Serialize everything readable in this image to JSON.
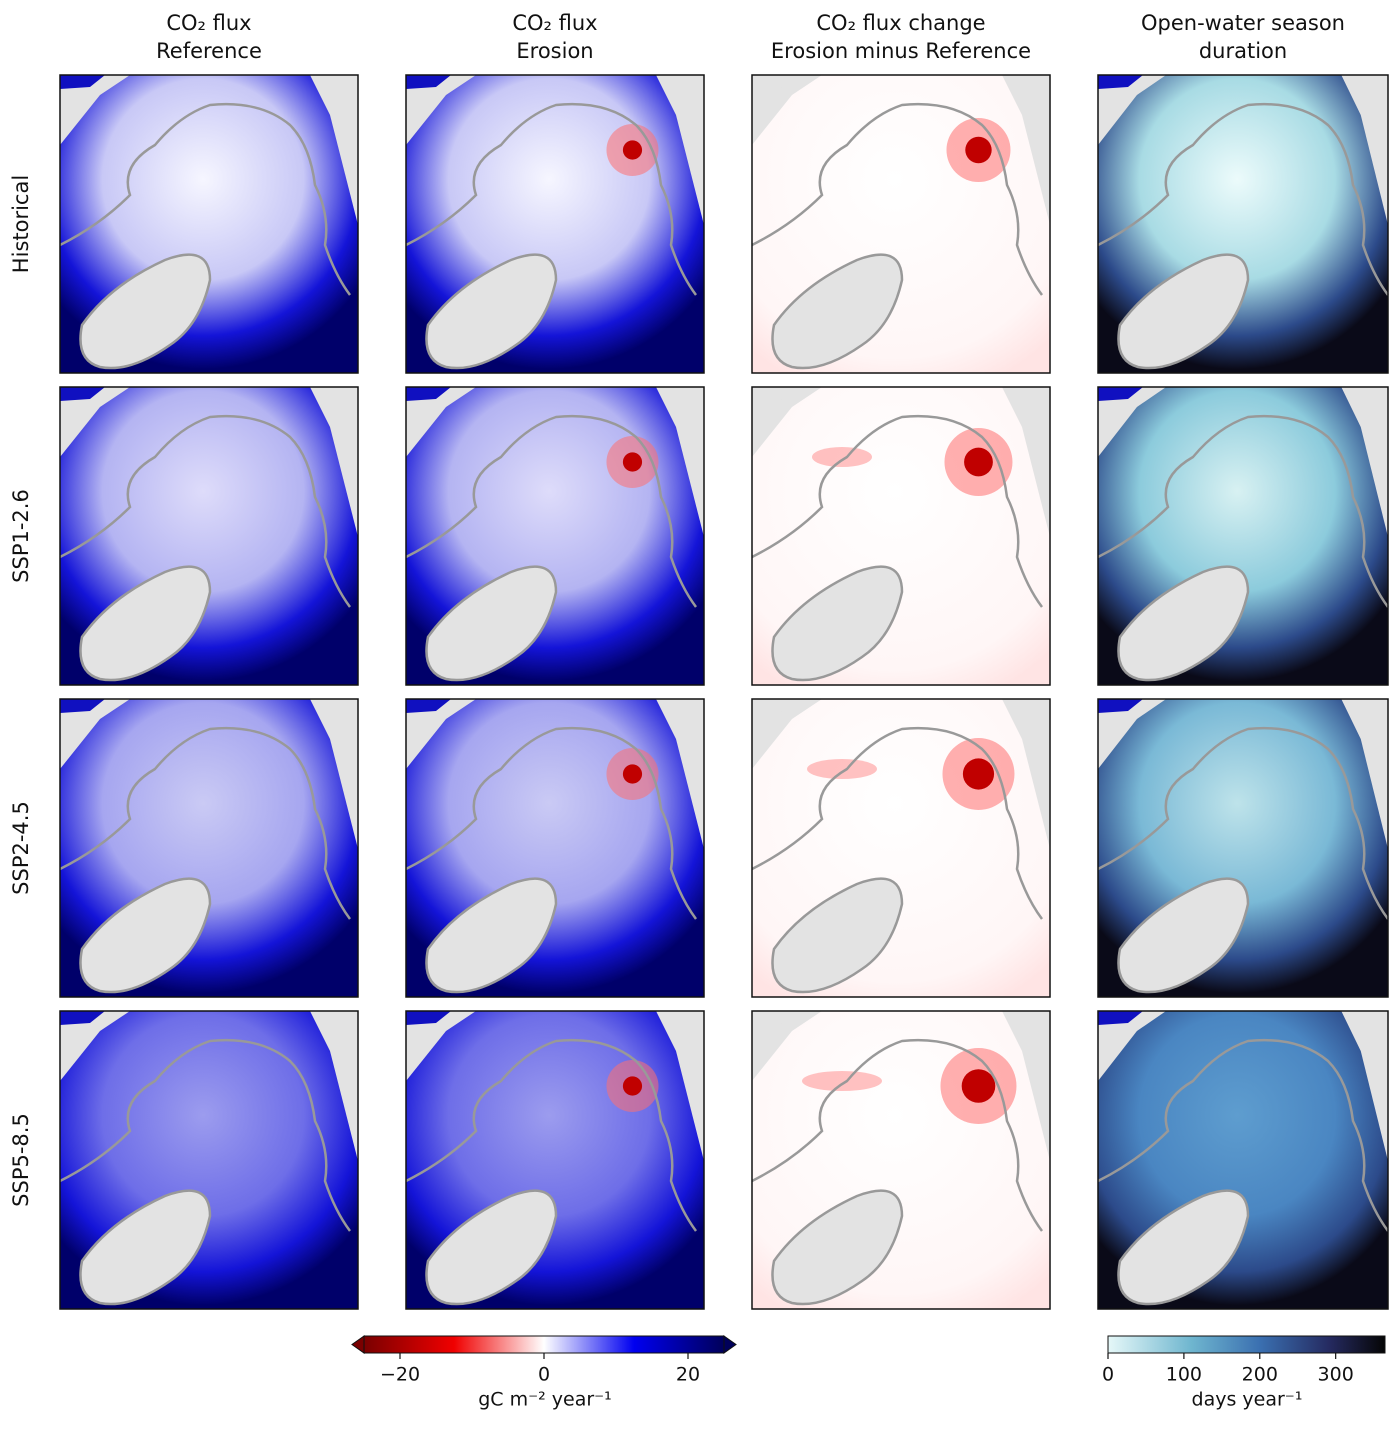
{
  "columns": [
    {
      "title": [
        "CO₂ flux",
        "Reference"
      ]
    },
    {
      "title": [
        "CO₂ flux",
        "Erosion"
      ]
    },
    {
      "title": [
        "CO₂ flux change",
        "Erosion minus Reference"
      ]
    },
    {
      "title": [
        "Open-water season",
        "duration"
      ]
    }
  ],
  "rows": [
    "Historical",
    "SSP1-2.6",
    "SSP2-4.5",
    "SSP5-8.5"
  ],
  "colorbars": [
    {
      "label": "gC m⁻² year⁻¹",
      "lim": [
        -25,
        25
      ],
      "ticks": [
        {
          "value": -20,
          "label": "−20"
        },
        0,
        20
      ]
    },
    {
      "label": "days year⁻¹",
      "lim": [
        0,
        365
      ],
      "ticks": [
        0,
        100,
        200,
        300
      ]
    }
  ]
}
